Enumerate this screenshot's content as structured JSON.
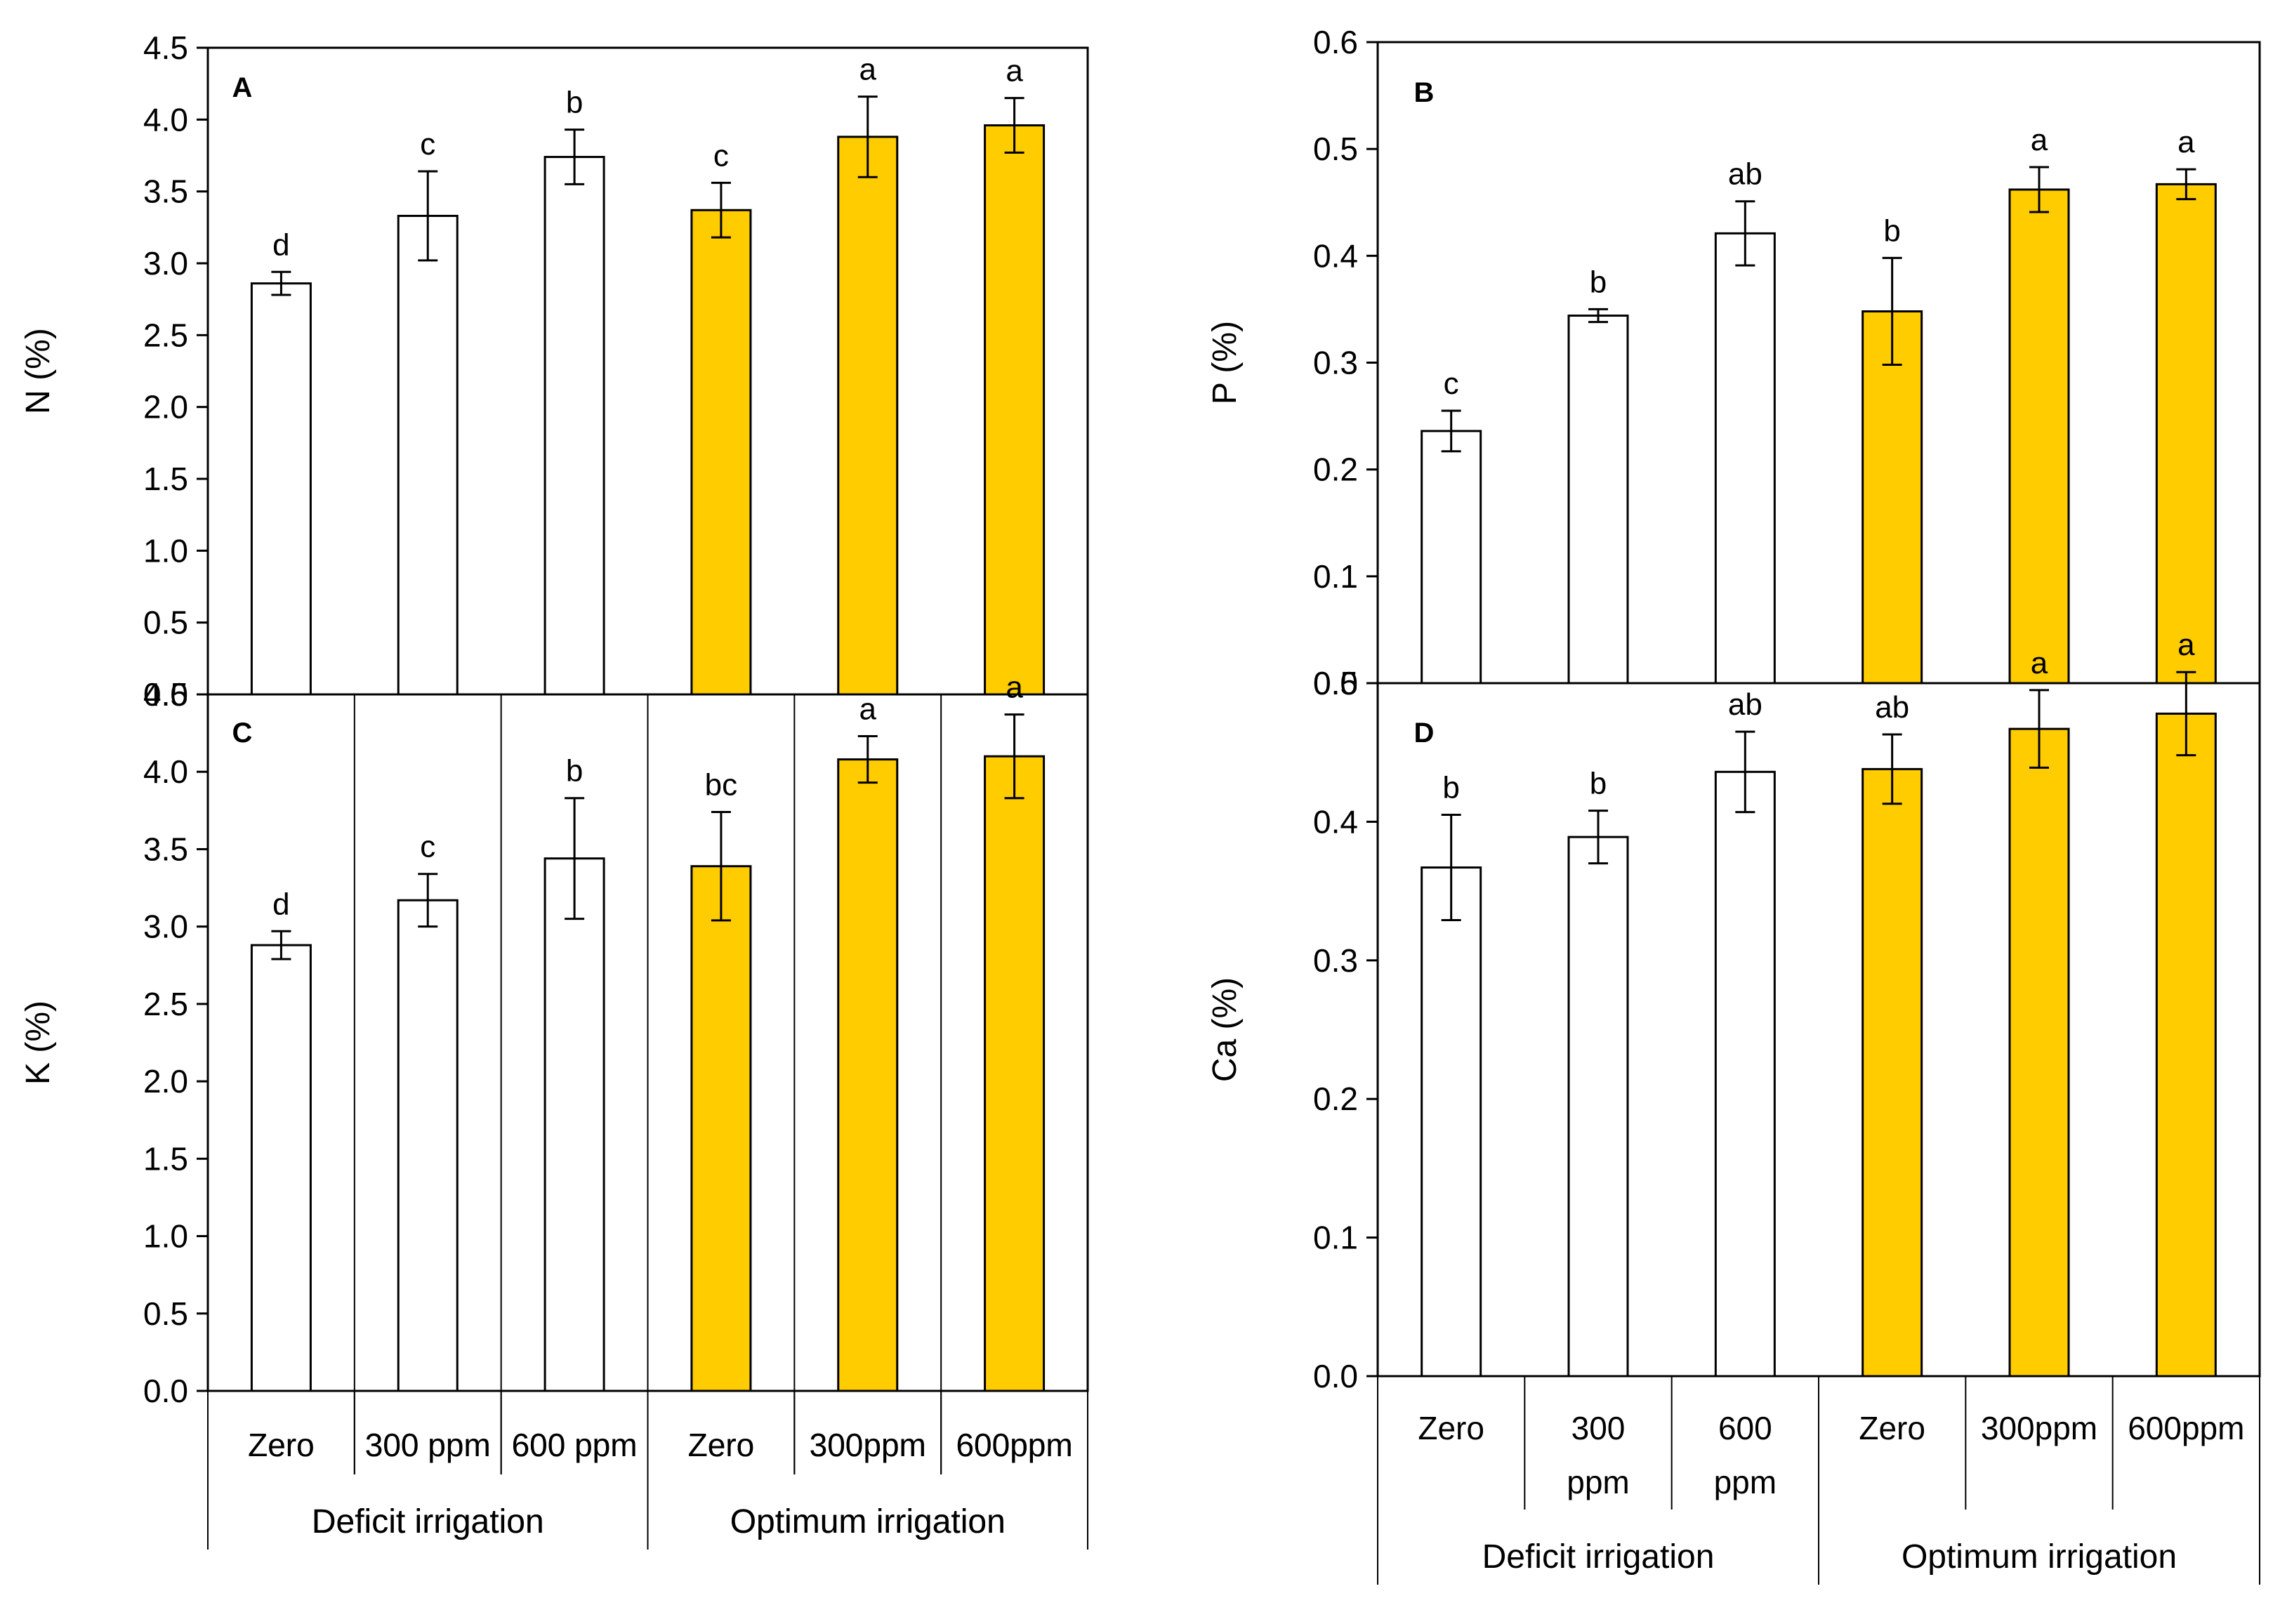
{
  "colors": {
    "deficit": "#ffffff",
    "optimum": "#ffcc00",
    "stroke": "#000000"
  },
  "chart_data": [
    {
      "type": "bar",
      "panel": "A",
      "ylabel": "N (%)",
      "ylim": [
        0,
        4.5
      ],
      "yticks": [
        "0.0",
        "0.5",
        "1.0",
        "1.5",
        "2.0",
        "2.5",
        "3.0",
        "3.5",
        "4.0",
        "4.5"
      ],
      "categories": [
        "Zero",
        "300 ppm",
        "600 ppm",
        "Zero",
        "300ppm",
        "600ppm"
      ],
      "groups": [
        "Deficit irrigation",
        "Optimum irrigation"
      ],
      "values": [
        2.86,
        3.33,
        3.74,
        3.37,
        3.88,
        3.96
      ],
      "errors": [
        0.08,
        0.31,
        0.19,
        0.19,
        0.28,
        0.19
      ],
      "letters": [
        "d",
        "c",
        "b",
        "c",
        "a",
        "a"
      ]
    },
    {
      "type": "bar",
      "panel": "B",
      "ylabel": "P (%)",
      "ylim": [
        0,
        0.6
      ],
      "yticks": [
        "0.0",
        "0.1",
        "0.2",
        "0.3",
        "0.4",
        "0.5",
        "0.6"
      ],
      "categories": [
        "Zero",
        "300 ppm",
        "600 ppm",
        "Zero",
        "300ppm",
        "600ppm"
      ],
      "groups": [
        "Deficit irrigation",
        "Optimum irrigation"
      ],
      "values": [
        0.236,
        0.344,
        0.421,
        0.348,
        0.462,
        0.467
      ],
      "errors": [
        0.019,
        0.006,
        0.03,
        0.05,
        0.021,
        0.014
      ],
      "letters": [
        "c",
        "b",
        "ab",
        "b",
        "a",
        "a"
      ]
    },
    {
      "type": "bar",
      "panel": "C",
      "ylabel": "K (%)",
      "ylim": [
        0,
        4.5
      ],
      "yticks": [
        "0.0",
        "0.5",
        "1.0",
        "1.5",
        "2.0",
        "2.5",
        "3.0",
        "3.5",
        "4.0",
        "4.5"
      ],
      "categories": [
        "Zero",
        "300 ppm",
        "600 ppm",
        "Zero",
        "300ppm",
        "600ppm"
      ],
      "groups": [
        "Deficit irrigation",
        "Optimum irrigation"
      ],
      "values": [
        2.88,
        3.17,
        3.44,
        3.39,
        4.08,
        4.1
      ],
      "errors": [
        0.09,
        0.17,
        0.39,
        0.35,
        0.15,
        0.27
      ],
      "letters": [
        "d",
        "c",
        "b",
        "bc",
        "a",
        "a"
      ]
    },
    {
      "type": "bar",
      "panel": "D",
      "ylabel": "Ca (%)",
      "ylim": [
        0,
        0.5
      ],
      "yticks": [
        "0.0",
        "0.1",
        "0.2",
        "0.3",
        "0.4",
        "0.5"
      ],
      "categories": [
        "Zero",
        "300 ppm",
        "600 ppm",
        "Zero",
        "300ppm",
        "600ppm"
      ],
      "groups": [
        "Deficit irrigation",
        "Optimum irrigation"
      ],
      "values": [
        0.367,
        0.389,
        0.436,
        0.438,
        0.467,
        0.478
      ],
      "errors": [
        0.038,
        0.019,
        0.029,
        0.025,
        0.028,
        0.03
      ],
      "letters": [
        "b",
        "b",
        "ab",
        "ab",
        "a",
        "a"
      ]
    }
  ]
}
